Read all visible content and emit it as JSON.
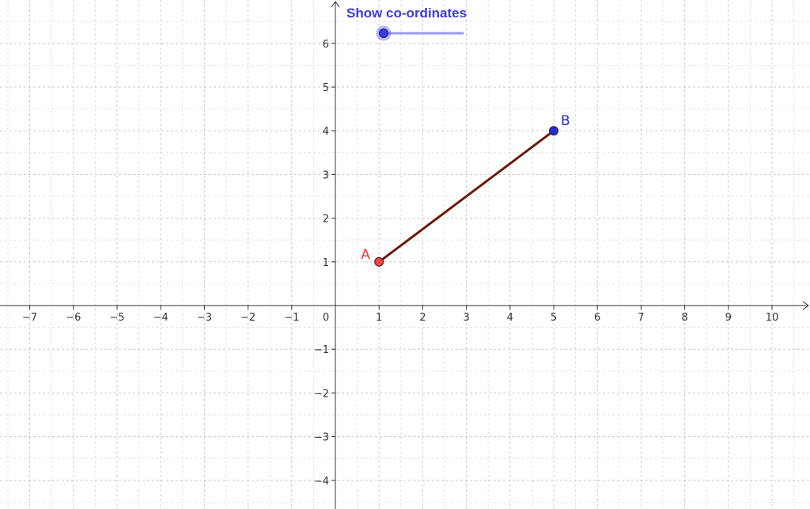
{
  "app": {
    "type": "geometry-graphics-view"
  },
  "axes": {
    "x_range": [
      -7.6,
      10.8
    ],
    "y_range": [
      -4.7,
      6.95
    ],
    "x_ticks": [
      -7,
      -6,
      -5,
      -4,
      -3,
      -2,
      -1,
      1,
      2,
      3,
      4,
      5,
      6,
      7,
      8,
      9,
      10
    ],
    "y_ticks": [
      -4,
      -3,
      -2,
      -1,
      1,
      2,
      3,
      4,
      5,
      6
    ],
    "origin_label": "0",
    "grid": true,
    "grid_minor": true
  },
  "points": [
    {
      "id": "A",
      "label": "A",
      "x": 1,
      "y": 1,
      "color": "#ff3d3d",
      "label_color": "#e53935"
    },
    {
      "id": "B",
      "label": "B",
      "x": 5,
      "y": 4,
      "color": "#2a2ad0",
      "label_color": "#2a2ad0"
    }
  ],
  "segment": {
    "from": "A",
    "to": "B",
    "color": "#6b1a0a"
  },
  "slider": {
    "label": "Show co-ordinates",
    "value": 0,
    "min": 0,
    "max": 1,
    "color": "#3a3ae0",
    "track_color": "#9a9af0"
  }
}
